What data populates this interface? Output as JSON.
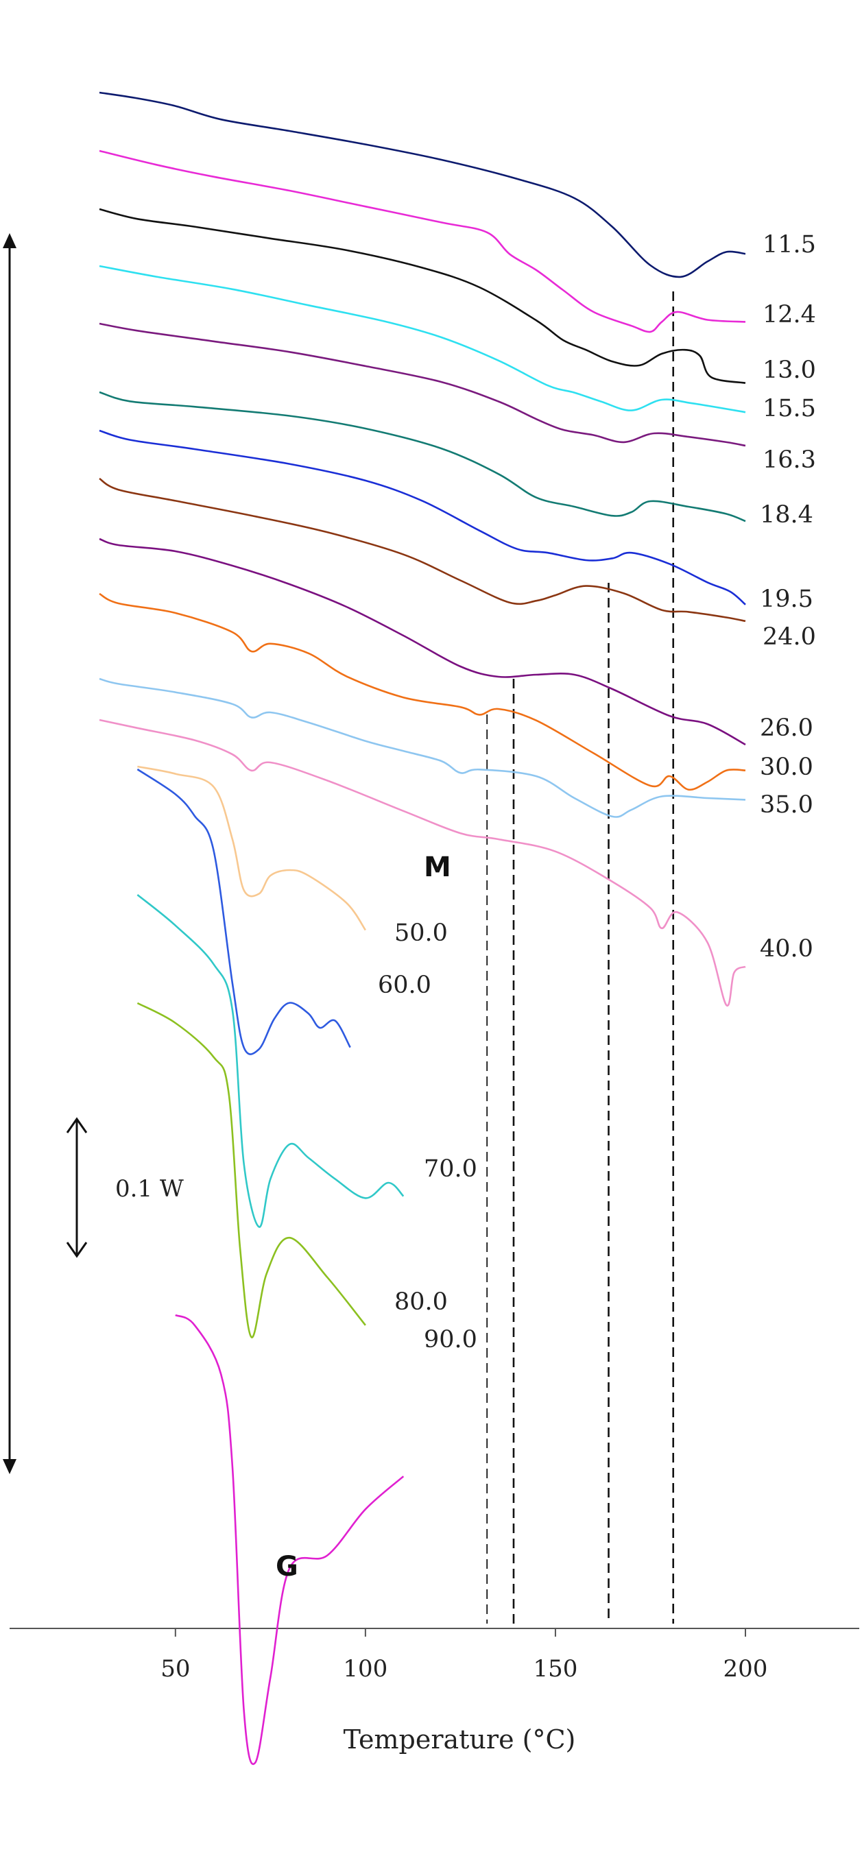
{
  "chart_data": {
    "type": "line",
    "title": "",
    "xlabel": "Temperature (°C)",
    "ylabel": "",
    "xlim": [
      20,
      225
    ],
    "x_ticks": [
      50,
      100,
      150,
      200
    ],
    "grid": false,
    "scale_bar_label": "0.1 W",
    "annotations": [
      {
        "text": "M",
        "x": 87
      },
      {
        "text": "G",
        "x": 76
      }
    ],
    "reference_lines_x": [
      132,
      139,
      164,
      181
    ],
    "series": [
      {
        "name": "11.5",
        "color": "#0c1a6e",
        "points": [
          [
            30,
            0.0
          ],
          [
            40,
            0.03
          ],
          [
            50,
            0.07
          ],
          [
            62,
            0.14
          ],
          [
            80,
            0.2
          ],
          [
            100,
            0.27
          ],
          [
            120,
            0.35
          ],
          [
            140,
            0.45
          ],
          [
            155,
            0.55
          ],
          [
            165,
            0.7
          ],
          [
            175,
            0.9
          ],
          [
            183,
            0.96
          ],
          [
            190,
            0.88
          ],
          [
            195,
            0.83
          ],
          [
            200,
            0.84
          ]
        ]
      },
      {
        "name": "12.4",
        "color": "#e82ad6",
        "points": [
          [
            30,
            0.0
          ],
          [
            45,
            0.07
          ],
          [
            60,
            0.13
          ],
          [
            80,
            0.2
          ],
          [
            100,
            0.28
          ],
          [
            120,
            0.36
          ],
          [
            132,
            0.41
          ],
          [
            138,
            0.52
          ],
          [
            145,
            0.6
          ],
          [
            152,
            0.7
          ],
          [
            160,
            0.81
          ],
          [
            170,
            0.88
          ],
          [
            175,
            0.91
          ],
          [
            178,
            0.86
          ],
          [
            182,
            0.81
          ],
          [
            190,
            0.85
          ],
          [
            200,
            0.86
          ]
        ]
      },
      {
        "name": "13.0",
        "color": "#111111",
        "points": [
          [
            30,
            0.0
          ],
          [
            40,
            0.05
          ],
          [
            55,
            0.09
          ],
          [
            75,
            0.15
          ],
          [
            95,
            0.21
          ],
          [
            115,
            0.3
          ],
          [
            130,
            0.4
          ],
          [
            145,
            0.57
          ],
          [
            152,
            0.67
          ],
          [
            158,
            0.72
          ],
          [
            165,
            0.78
          ],
          [
            172,
            0.8
          ],
          [
            178,
            0.74
          ],
          [
            184,
            0.72
          ],
          [
            188,
            0.75
          ],
          [
            191,
            0.86
          ],
          [
            200,
            0.89
          ]
        ]
      },
      {
        "name": "15.5",
        "color": "#2ee0f0",
        "points": [
          [
            30,
            0.0
          ],
          [
            45,
            0.06
          ],
          [
            65,
            0.13
          ],
          [
            85,
            0.22
          ],
          [
            105,
            0.31
          ],
          [
            120,
            0.4
          ],
          [
            135,
            0.53
          ],
          [
            148,
            0.67
          ],
          [
            155,
            0.71
          ],
          [
            162,
            0.76
          ],
          [
            170,
            0.81
          ],
          [
            178,
            0.75
          ],
          [
            186,
            0.77
          ],
          [
            200,
            0.82
          ]
        ]
      },
      {
        "name": "16.3",
        "color": "#7a1a7e",
        "points": [
          [
            30,
            0.0
          ],
          [
            40,
            0.04
          ],
          [
            60,
            0.1
          ],
          [
            80,
            0.16
          ],
          [
            100,
            0.24
          ],
          [
            120,
            0.33
          ],
          [
            135,
            0.44
          ],
          [
            145,
            0.54
          ],
          [
            152,
            0.6
          ],
          [
            160,
            0.63
          ],
          [
            168,
            0.67
          ],
          [
            176,
            0.62
          ],
          [
            185,
            0.64
          ],
          [
            195,
            0.67
          ],
          [
            200,
            0.69
          ]
        ]
      },
      {
        "name": "18.4",
        "color": "#137b73",
        "points": [
          [
            30,
            0.0
          ],
          [
            38,
            0.05
          ],
          [
            55,
            0.08
          ],
          [
            80,
            0.13
          ],
          [
            100,
            0.2
          ],
          [
            120,
            0.31
          ],
          [
            135,
            0.45
          ],
          [
            145,
            0.58
          ],
          [
            155,
            0.63
          ],
          [
            165,
            0.68
          ],
          [
            170,
            0.66
          ],
          [
            175,
            0.6
          ],
          [
            185,
            0.63
          ],
          [
            195,
            0.67
          ],
          [
            200,
            0.71
          ]
        ]
      },
      {
        "name": "19.5",
        "color": "#1a2ed6",
        "points": [
          [
            30,
            0.0
          ],
          [
            38,
            0.05
          ],
          [
            55,
            0.1
          ],
          [
            80,
            0.18
          ],
          [
            100,
            0.27
          ],
          [
            115,
            0.38
          ],
          [
            130,
            0.54
          ],
          [
            140,
            0.64
          ],
          [
            148,
            0.66
          ],
          [
            158,
            0.7
          ],
          [
            165,
            0.69
          ],
          [
            170,
            0.66
          ],
          [
            180,
            0.72
          ],
          [
            190,
            0.82
          ],
          [
            196,
            0.87
          ],
          [
            200,
            0.94
          ]
        ]
      },
      {
        "name": "24.0",
        "color": "#8b3612",
        "points": [
          [
            30,
            0.0
          ],
          [
            35,
            0.06
          ],
          [
            50,
            0.12
          ],
          [
            70,
            0.2
          ],
          [
            90,
            0.29
          ],
          [
            110,
            0.41
          ],
          [
            125,
            0.55
          ],
          [
            138,
            0.67
          ],
          [
            145,
            0.66
          ],
          [
            150,
            0.63
          ],
          [
            158,
            0.58
          ],
          [
            168,
            0.62
          ],
          [
            178,
            0.71
          ],
          [
            185,
            0.72
          ],
          [
            195,
            0.75
          ],
          [
            200,
            0.77
          ]
        ]
      },
      {
        "name": "26.0",
        "color": "#7a1080",
        "points": [
          [
            30,
            0.0
          ],
          [
            35,
            0.03
          ],
          [
            50,
            0.06
          ],
          [
            65,
            0.13
          ],
          [
            80,
            0.22
          ],
          [
            95,
            0.33
          ],
          [
            110,
            0.47
          ],
          [
            125,
            0.62
          ],
          [
            135,
            0.67
          ],
          [
            145,
            0.66
          ],
          [
            155,
            0.66
          ],
          [
            165,
            0.73
          ],
          [
            180,
            0.86
          ],
          [
            190,
            0.9
          ],
          [
            200,
            1.0
          ]
        ]
      },
      {
        "name": "30.0",
        "color": "#f07016",
        "points": [
          [
            30,
            0.0
          ],
          [
            35,
            0.05
          ],
          [
            50,
            0.1
          ],
          [
            65,
            0.2
          ],
          [
            70,
            0.3
          ],
          [
            75,
            0.26
          ],
          [
            85,
            0.31
          ],
          [
            95,
            0.43
          ],
          [
            110,
            0.54
          ],
          [
            125,
            0.59
          ],
          [
            130,
            0.63
          ],
          [
            135,
            0.6
          ],
          [
            145,
            0.66
          ],
          [
            160,
            0.83
          ],
          [
            175,
            1.0
          ],
          [
            180,
            0.95
          ],
          [
            185,
            1.02
          ],
          [
            190,
            0.98
          ],
          [
            195,
            0.92
          ],
          [
            200,
            0.92
          ]
        ]
      },
      {
        "name": "35.0",
        "color": "#8ec6f0",
        "points": [
          [
            30,
            0.0
          ],
          [
            35,
            0.03
          ],
          [
            50,
            0.08
          ],
          [
            65,
            0.15
          ],
          [
            70,
            0.23
          ],
          [
            75,
            0.2
          ],
          [
            85,
            0.26
          ],
          [
            100,
            0.37
          ],
          [
            110,
            0.43
          ],
          [
            120,
            0.49
          ],
          [
            125,
            0.56
          ],
          [
            130,
            0.54
          ],
          [
            145,
            0.58
          ],
          [
            155,
            0.71
          ],
          [
            165,
            0.82
          ],
          [
            170,
            0.78
          ],
          [
            178,
            0.7
          ],
          [
            190,
            0.71
          ],
          [
            200,
            0.72
          ]
        ]
      },
      {
        "name": "40.0",
        "color": "#f090c8",
        "points": [
          [
            30,
            0.0
          ],
          [
            40,
            0.04
          ],
          [
            55,
            0.1
          ],
          [
            65,
            0.17
          ],
          [
            70,
            0.25
          ],
          [
            75,
            0.21
          ],
          [
            90,
            0.3
          ],
          [
            110,
            0.45
          ],
          [
            125,
            0.56
          ],
          [
            135,
            0.59
          ],
          [
            150,
            0.65
          ],
          [
            165,
            0.8
          ],
          [
            175,
            0.93
          ],
          [
            178,
            1.03
          ],
          [
            182,
            0.95
          ],
          [
            190,
            1.1
          ],
          [
            195,
            1.41
          ],
          [
            197,
            1.25
          ],
          [
            200,
            1.22
          ]
        ]
      },
      {
        "name": "50.0",
        "color": "#f8c890",
        "points": [
          [
            40,
            0.0
          ],
          [
            50,
            0.04
          ],
          [
            60,
            0.11
          ],
          [
            65,
            0.4
          ],
          [
            68,
            0.68
          ],
          [
            72,
            0.7
          ],
          [
            75,
            0.6
          ],
          [
            80,
            0.57
          ],
          [
            85,
            0.6
          ],
          [
            95,
            0.75
          ],
          [
            100,
            0.9
          ]
        ]
      },
      {
        "name": "60.0",
        "color": "#2e5ae0",
        "points": [
          [
            40,
            0.0
          ],
          [
            50,
            0.14
          ],
          [
            55,
            0.26
          ],
          [
            60,
            0.45
          ],
          [
            65,
            1.2
          ],
          [
            68,
            1.56
          ],
          [
            72,
            1.57
          ],
          [
            76,
            1.4
          ],
          [
            80,
            1.31
          ],
          [
            85,
            1.37
          ],
          [
            88,
            1.45
          ],
          [
            92,
            1.41
          ],
          [
            96,
            1.56
          ]
        ]
      },
      {
        "name": "70.0",
        "color": "#30c8c8",
        "points": [
          [
            40,
            0.0
          ],
          [
            50,
            0.16
          ],
          [
            60,
            0.36
          ],
          [
            65,
            0.6
          ],
          [
            68,
            1.4
          ],
          [
            72,
            1.73
          ],
          [
            75,
            1.48
          ],
          [
            80,
            1.3
          ],
          [
            85,
            1.37
          ],
          [
            92,
            1.48
          ],
          [
            100,
            1.58
          ],
          [
            106,
            1.5
          ],
          [
            110,
            1.57
          ]
        ]
      },
      {
        "name": "80.0",
        "color": "#8cc020",
        "points": [
          [
            40,
            0.0
          ],
          [
            50,
            0.1
          ],
          [
            60,
            0.27
          ],
          [
            64,
            0.45
          ],
          [
            67,
            1.23
          ],
          [
            70,
            1.68
          ],
          [
            74,
            1.36
          ],
          [
            80,
            1.18
          ],
          [
            90,
            1.38
          ],
          [
            100,
            1.62
          ]
        ]
      },
      {
        "name": "90.0",
        "color": "#e020d0",
        "points": [
          [
            50,
            0.0
          ],
          [
            55,
            0.03
          ],
          [
            62,
            0.18
          ],
          [
            65,
            0.46
          ],
          [
            68,
            1.2
          ],
          [
            71,
            1.36
          ],
          [
            75,
            1.1
          ],
          [
            80,
            0.77
          ],
          [
            90,
            0.73
          ],
          [
            100,
            0.59
          ],
          [
            110,
            0.49
          ]
        ]
      }
    ]
  }
}
